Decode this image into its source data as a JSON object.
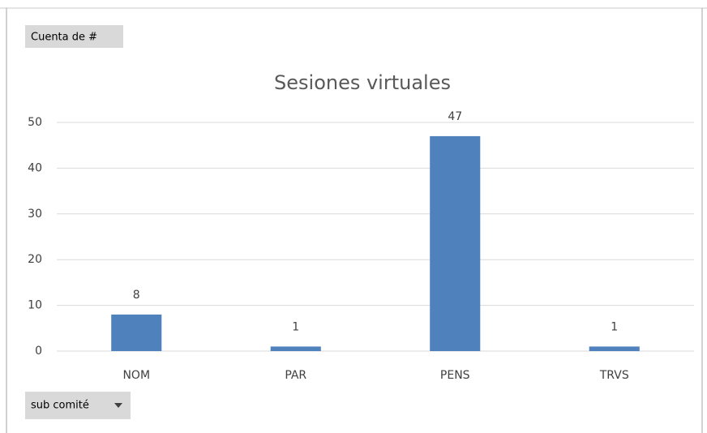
{
  "chart_data": {
    "type": "bar",
    "title": "Sesiones virtuales",
    "field_buttons": {
      "values": "Cuenta de #",
      "axis": "sub comité"
    },
    "categories": [
      "NOM",
      "PAR",
      "PENS",
      "TRVS"
    ],
    "values": [
      8,
      1,
      47,
      1
    ],
    "color": "#4f81bd",
    "ylim": [
      0,
      50
    ],
    "yticks": [
      0,
      10,
      20,
      30,
      40,
      50
    ],
    "grid": true
  }
}
